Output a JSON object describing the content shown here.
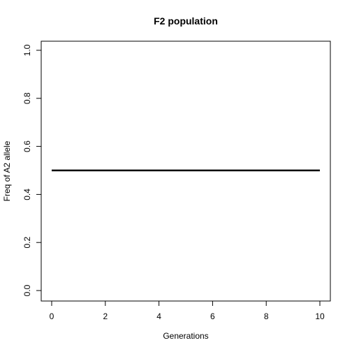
{
  "chart_data": {
    "type": "line",
    "title": "F2 population",
    "xlabel": "Generations",
    "ylabel": "Freq of A2 allele",
    "x": [
      0,
      1,
      2,
      3,
      4,
      5,
      6,
      7,
      8,
      9,
      10
    ],
    "series": [
      {
        "values": [
          0.5,
          0.5,
          0.5,
          0.5,
          0.5,
          0.5,
          0.5,
          0.5,
          0.5,
          0.5,
          0.5
        ],
        "color": "#000000"
      }
    ],
    "xlim": [
      0,
      10
    ],
    "ylim": [
      0,
      1
    ],
    "xticks": [
      0,
      2,
      4,
      6,
      8,
      10
    ],
    "yticks": [
      0.0,
      0.2,
      0.4,
      0.6,
      0.8,
      1.0
    ],
    "xtick_labels": [
      "0",
      "2",
      "4",
      "6",
      "8",
      "10"
    ],
    "ytick_labels": [
      "0.0",
      "0.2",
      "0.4",
      "0.6",
      "0.8",
      "1.0"
    ],
    "grid": false,
    "legend": false
  }
}
